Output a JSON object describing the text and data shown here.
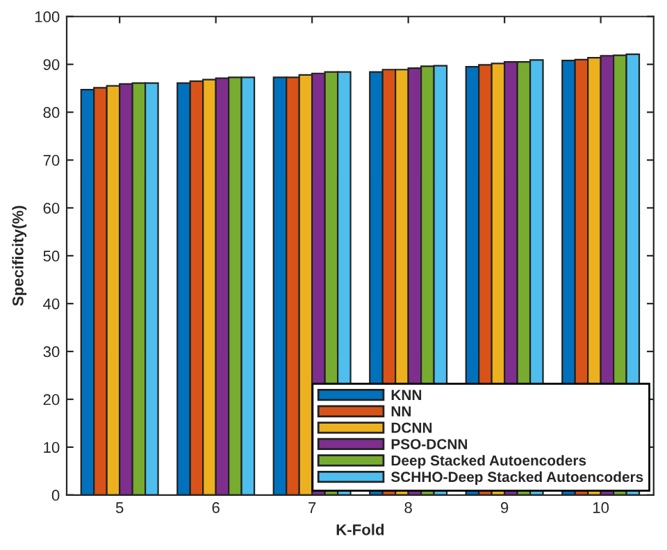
{
  "chart_data": {
    "type": "bar",
    "xlabel": "K-Fold",
    "ylabel": "Specificity(%)",
    "categories": [
      "5",
      "6",
      "7",
      "8",
      "9",
      "10"
    ],
    "series": [
      {
        "name": "KNN",
        "color": "#0072bd",
        "values": [
          84.7,
          86.1,
          87.3,
          88.4,
          89.5,
          90.8
        ]
      },
      {
        "name": "NN",
        "color": "#d95319",
        "values": [
          85.1,
          86.5,
          87.3,
          88.9,
          89.9,
          91.0
        ]
      },
      {
        "name": "DCNN",
        "color": "#edb120",
        "values": [
          85.5,
          86.8,
          87.8,
          88.9,
          90.2,
          91.4
        ]
      },
      {
        "name": "PSO-DCNN",
        "color": "#7e2f8e",
        "values": [
          85.9,
          87.1,
          88.1,
          89.2,
          90.5,
          91.8
        ]
      },
      {
        "name": "Deep Stacked Autoencoders",
        "color": "#77ac30",
        "values": [
          86.1,
          87.3,
          88.4,
          89.6,
          90.5,
          91.9
        ]
      },
      {
        "name": "SCHHO-Deep Stacked Autoencoders",
        "color": "#4dbeee",
        "values": [
          86.1,
          87.3,
          88.4,
          89.7,
          90.9,
          92.1
        ]
      }
    ],
    "ylim": [
      0,
      100
    ],
    "yticks": [
      0,
      10,
      20,
      30,
      40,
      50,
      60,
      70,
      80,
      90,
      100
    ],
    "grid": false,
    "legend": "bottom right"
  }
}
